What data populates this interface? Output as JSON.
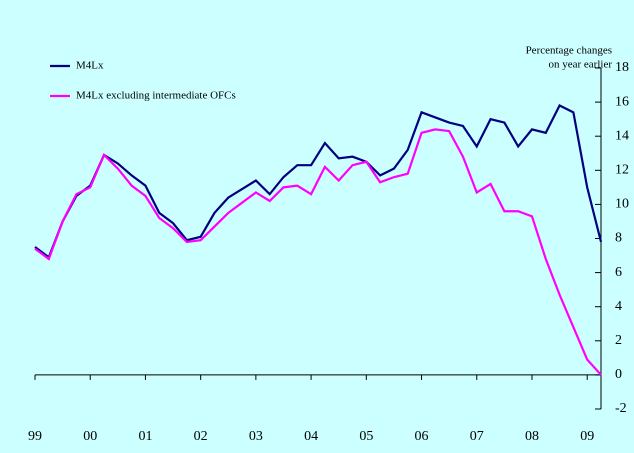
{
  "chart_data": {
    "type": "line",
    "unit_note": [
      "Percentage changes",
      "on year earlier"
    ],
    "categories": [
      "99",
      null,
      null,
      null,
      "00",
      null,
      null,
      null,
      "01",
      null,
      null,
      null,
      "02",
      null,
      null,
      null,
      "03",
      null,
      null,
      null,
      "04",
      null,
      null,
      null,
      "05",
      null,
      null,
      null,
      "06",
      null,
      null,
      null,
      "07",
      null,
      null,
      null,
      "08",
      null,
      null,
      null,
      "09",
      null
    ],
    "series": [
      {
        "name": "M4Lx",
        "color": "#000080",
        "values": [
          7.5,
          6.9,
          9.0,
          10.5,
          11.1,
          12.9,
          12.4,
          11.7,
          11.1,
          9.5,
          8.9,
          7.9,
          8.1,
          9.5,
          10.4,
          10.9,
          11.4,
          10.6,
          11.6,
          12.3,
          12.3,
          13.6,
          12.7,
          12.8,
          12.5,
          11.7,
          12.1,
          13.2,
          15.4,
          15.1,
          14.8,
          14.6,
          13.4,
          15.0,
          14.8,
          13.4,
          14.4,
          14.2,
          15.8,
          15.4,
          11.0,
          7.8
        ]
      },
      {
        "name": "M4Lx excluding intermediate OFCs",
        "color": "#ff00ff",
        "values": [
          7.4,
          6.8,
          9.0,
          10.6,
          11.0,
          12.9,
          12.1,
          11.1,
          10.5,
          9.2,
          8.6,
          7.8,
          7.9,
          8.7,
          9.5,
          10.1,
          10.7,
          10.2,
          11.0,
          11.1,
          10.6,
          12.2,
          11.4,
          12.3,
          12.5,
          11.3,
          11.6,
          11.8,
          14.2,
          14.4,
          14.3,
          12.8,
          10.7,
          11.2,
          9.6,
          9.6,
          9.3,
          6.8,
          4.7,
          2.8,
          0.9,
          0.0
        ]
      }
    ],
    "ylim": [
      -2,
      18
    ],
    "yticks": [
      -2,
      0,
      2,
      4,
      6,
      8,
      10,
      12,
      14,
      16,
      18
    ],
    "legend": "top-left"
  }
}
